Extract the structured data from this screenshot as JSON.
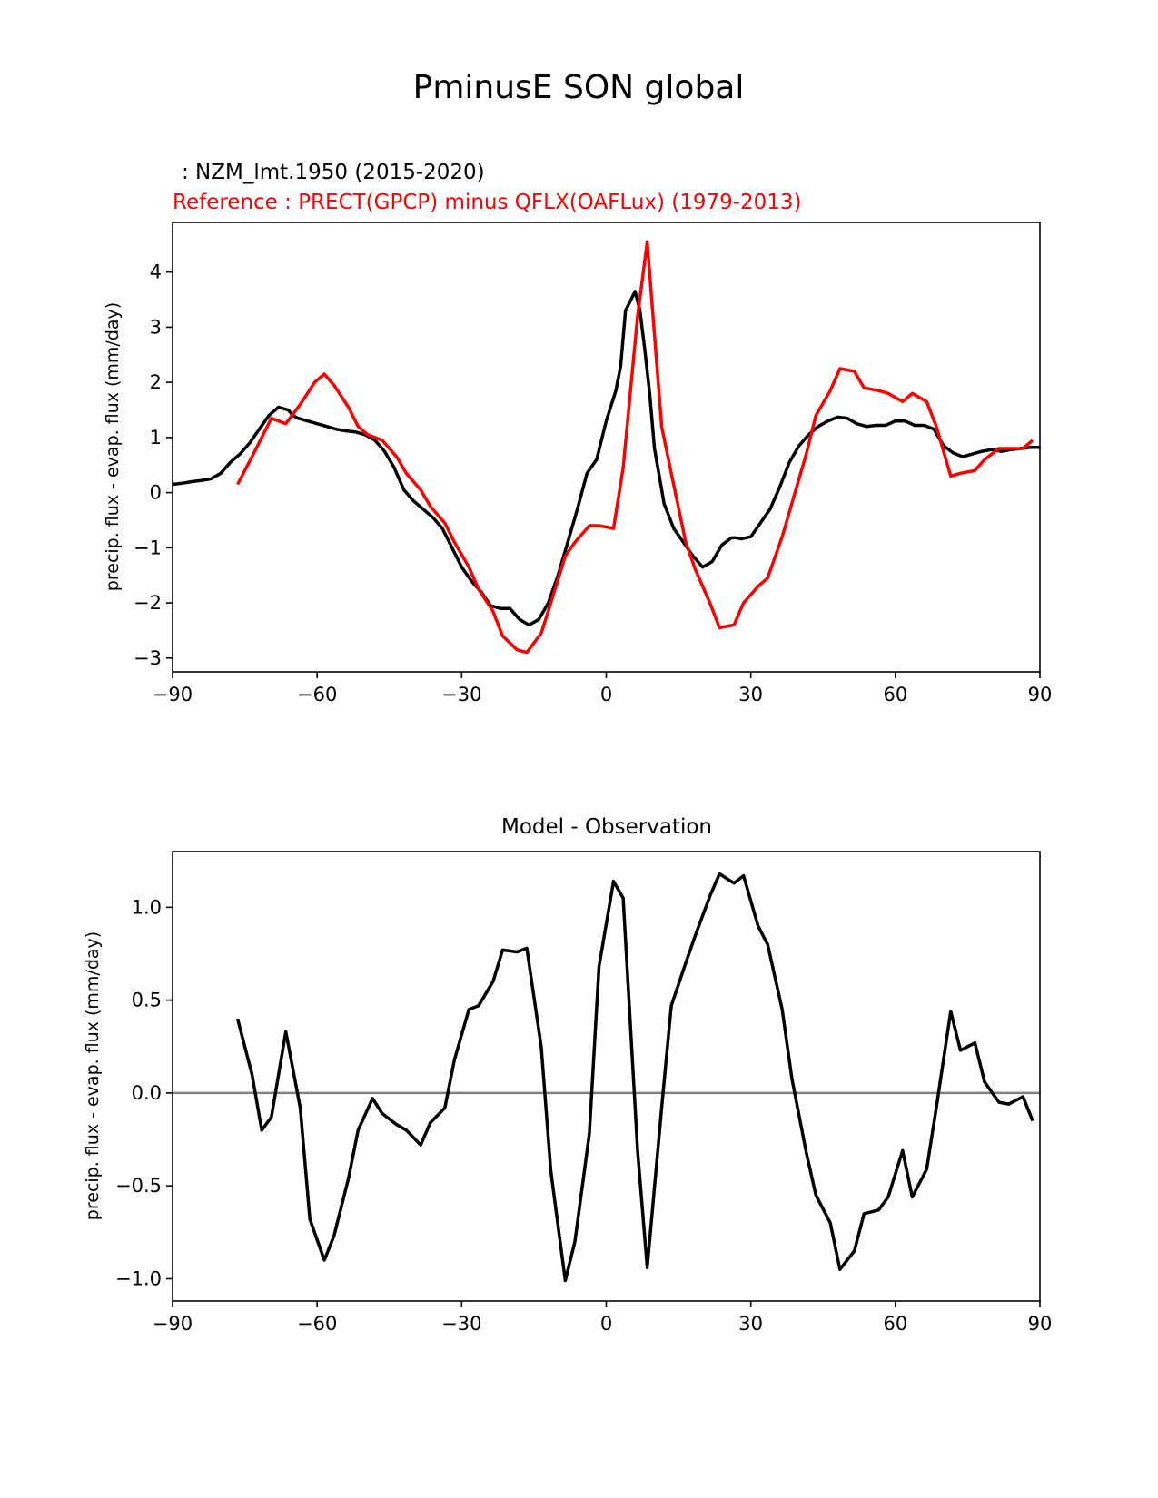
{
  "figure": {
    "title": "PminusE SON global",
    "model_label": " : NZM_lmt.1950 (2015-2020)",
    "reference_label": "Reference : PRECT(GPCP) minus QFLX(OAFLux) (1979-2013)"
  },
  "colors": {
    "model": "#000000",
    "reference": "#ff0000",
    "zero_line": "#808080",
    "axes": "#000000"
  },
  "chart_data": [
    {
      "type": "line",
      "title": "",
      "xlabel": "",
      "ylabel": "precip. flux - evap. flux (mm/day)",
      "xlim": [
        -90,
        90
      ],
      "ylim": [
        -3.25,
        4.9
      ],
      "xticks": [
        -90,
        -60,
        -30,
        0,
        30,
        60,
        90
      ],
      "xtick_labels": [
        "−90",
        "−60",
        "−30",
        "0",
        "30",
        "60",
        "90"
      ],
      "yticks": [
        -3,
        -2,
        -1,
        0,
        1,
        2,
        3,
        4
      ],
      "ytick_labels": [
        "−3",
        "−2",
        "−1",
        "0",
        "1",
        "2",
        "3",
        "4"
      ],
      "series": [
        {
          "name": "NZM_lmt.1950 (2015-2020)",
          "color": "#000000",
          "x": [
            -90,
            -88,
            -86,
            -84,
            -82,
            -80,
            -78,
            -76,
            -74,
            -72,
            -70,
            -68,
            -66,
            -65,
            -64,
            -62,
            -60,
            -58,
            -56,
            -54,
            -52,
            -50,
            -48,
            -46,
            -44,
            -42,
            -40,
            -38,
            -36,
            -34,
            -32,
            -30,
            -28,
            -26,
            -24,
            -22,
            -20,
            -18,
            -16,
            -14,
            -12,
            -10,
            -8,
            -6,
            -4,
            -2,
            0,
            2,
            3,
            4,
            6,
            7,
            8,
            9,
            10,
            12,
            14,
            16,
            18,
            20,
            22,
            24,
            26,
            27,
            28,
            30,
            32,
            34,
            36,
            38,
            40,
            42,
            44,
            46,
            48,
            50,
            52,
            54,
            56,
            58,
            60,
            62,
            64,
            66,
            68,
            70,
            72,
            74,
            76,
            78,
            80,
            82,
            84,
            86,
            88,
            90
          ],
          "y": [
            0.15,
            0.17,
            0.2,
            0.22,
            0.25,
            0.35,
            0.55,
            0.7,
            0.9,
            1.15,
            1.4,
            1.55,
            1.5,
            1.4,
            1.35,
            1.3,
            1.25,
            1.2,
            1.15,
            1.12,
            1.1,
            1.05,
            0.95,
            0.75,
            0.45,
            0.05,
            -0.15,
            -0.3,
            -0.45,
            -0.65,
            -1.0,
            -1.35,
            -1.6,
            -1.8,
            -2.05,
            -2.1,
            -2.1,
            -2.3,
            -2.4,
            -2.3,
            -2.0,
            -1.5,
            -0.9,
            -0.3,
            0.35,
            0.6,
            1.3,
            1.85,
            2.3,
            3.3,
            3.65,
            3.3,
            2.6,
            1.8,
            0.8,
            -0.2,
            -0.65,
            -0.9,
            -1.15,
            -1.35,
            -1.25,
            -0.95,
            -0.82,
            -0.82,
            -0.84,
            -0.8,
            -0.55,
            -0.3,
            0.1,
            0.55,
            0.85,
            1.05,
            1.2,
            1.3,
            1.37,
            1.35,
            1.25,
            1.2,
            1.22,
            1.22,
            1.3,
            1.3,
            1.22,
            1.22,
            1.15,
            0.85,
            0.72,
            0.65,
            0.7,
            0.75,
            0.78,
            0.75,
            0.78,
            0.8,
            0.82,
            0.82
          ]
        },
        {
          "name": "PRECT(GPCP) minus QFLX(OAFLux) (1979-2013)",
          "color": "#ff0000",
          "x": [
            -76.5,
            -73.5,
            -71.5,
            -69.5,
            -66.5,
            -63.5,
            -60.5,
            -58.5,
            -56.5,
            -53.5,
            -51.5,
            -49.5,
            -46.5,
            -43.5,
            -41.5,
            -38.5,
            -36.5,
            -33.5,
            -31.5,
            -28.5,
            -26.5,
            -23.5,
            -21.5,
            -18.5,
            -16.5,
            -13.5,
            -11.5,
            -8.5,
            -6.5,
            -3.5,
            -1.5,
            1.5,
            3.5,
            6.5,
            8.5,
            11.5,
            13.5,
            16.5,
            18.5,
            21.5,
            23.5,
            26.5,
            28.5,
            31.5,
            33.5,
            36.5,
            38.5,
            41.5,
            43.5,
            46.5,
            48.5,
            51.5,
            53.5,
            56.5,
            58.5,
            61.5,
            63.5,
            66.5,
            68.5,
            71.5,
            73.5,
            76.5,
            78.5,
            81.5,
            83.5,
            86.5,
            88.5
          ],
          "y": [
            0.15,
            0.65,
            1.0,
            1.35,
            1.25,
            1.6,
            2.0,
            2.15,
            1.95,
            1.55,
            1.2,
            1.05,
            0.95,
            0.65,
            0.35,
            0.05,
            -0.25,
            -0.55,
            -0.9,
            -1.35,
            -1.75,
            -2.15,
            -2.6,
            -2.85,
            -2.9,
            -2.55,
            -2.0,
            -1.15,
            -0.9,
            -0.6,
            -0.6,
            -0.65,
            0.45,
            3.2,
            4.55,
            1.2,
            0.35,
            -0.9,
            -1.4,
            -2.0,
            -2.45,
            -2.4,
            -2.0,
            -1.7,
            -1.55,
            -0.8,
            -0.2,
            0.7,
            1.4,
            1.85,
            2.25,
            2.2,
            1.9,
            1.85,
            1.8,
            1.65,
            1.8,
            1.65,
            1.2,
            0.3,
            0.35,
            0.4,
            0.6,
            0.8,
            0.8,
            0.8,
            0.95
          ]
        }
      ]
    },
    {
      "type": "line",
      "title": "Model - Observation",
      "xlabel": "",
      "ylabel": "precip. flux - evap. flux (mm/day)",
      "xlim": [
        -90,
        90
      ],
      "ylim": [
        -1.12,
        1.3
      ],
      "xticks": [
        -90,
        -60,
        -30,
        0,
        30,
        60,
        90
      ],
      "xtick_labels": [
        "−90",
        "−60",
        "−30",
        "0",
        "30",
        "60",
        "90"
      ],
      "yticks": [
        -1.0,
        -0.5,
        0.0,
        0.5,
        1.0
      ],
      "ytick_labels": [
        "−1.0",
        "−0.5",
        "0.0",
        "0.5",
        "1.0"
      ],
      "reference_line": 0.0,
      "series": [
        {
          "name": "Model - Observation",
          "color": "#000000",
          "x": [
            -76.5,
            -73.5,
            -71.5,
            -69.5,
            -66.5,
            -63.5,
            -61.5,
            -58.5,
            -56.5,
            -53.5,
            -51.5,
            -48.5,
            -46.5,
            -43.5,
            -41.5,
            -38.5,
            -36.5,
            -33.5,
            -31.5,
            -28.5,
            -26.5,
            -23.5,
            -21.5,
            -18.5,
            -16.5,
            -13.5,
            -11.5,
            -8.5,
            -6.5,
            -3.5,
            -1.5,
            1.5,
            3.5,
            6.5,
            8.5,
            11.5,
            13.5,
            16.5,
            18.5,
            21.5,
            23.5,
            26.5,
            28.5,
            31.5,
            33.5,
            36.5,
            38.5,
            41.5,
            43.5,
            46.5,
            48.5,
            51.5,
            53.5,
            56.5,
            58.5,
            61.5,
            63.5,
            66.5,
            68.5,
            71.5,
            73.5,
            76.5,
            78.5,
            81.5,
            83.5,
            86.5,
            88.5
          ],
          "y": [
            0.4,
            0.1,
            -0.2,
            -0.13,
            0.33,
            -0.08,
            -0.68,
            -0.9,
            -0.77,
            -0.46,
            -0.2,
            -0.03,
            -0.11,
            -0.17,
            -0.2,
            -0.28,
            -0.16,
            -0.08,
            0.18,
            0.45,
            0.47,
            0.6,
            0.77,
            0.76,
            0.78,
            0.25,
            -0.42,
            -1.01,
            -0.8,
            -0.22,
            0.68,
            1.14,
            1.05,
            -0.31,
            -0.94,
            -0.08,
            0.47,
            0.7,
            0.85,
            1.06,
            1.18,
            1.13,
            1.17,
            0.9,
            0.8,
            0.45,
            0.08,
            -0.32,
            -0.55,
            -0.7,
            -0.95,
            -0.85,
            -0.65,
            -0.63,
            -0.56,
            -0.31,
            -0.56,
            -0.41,
            -0.08,
            0.44,
            0.23,
            0.27,
            0.06,
            -0.05,
            -0.06,
            -0.02,
            -0.15
          ]
        }
      ]
    }
  ]
}
